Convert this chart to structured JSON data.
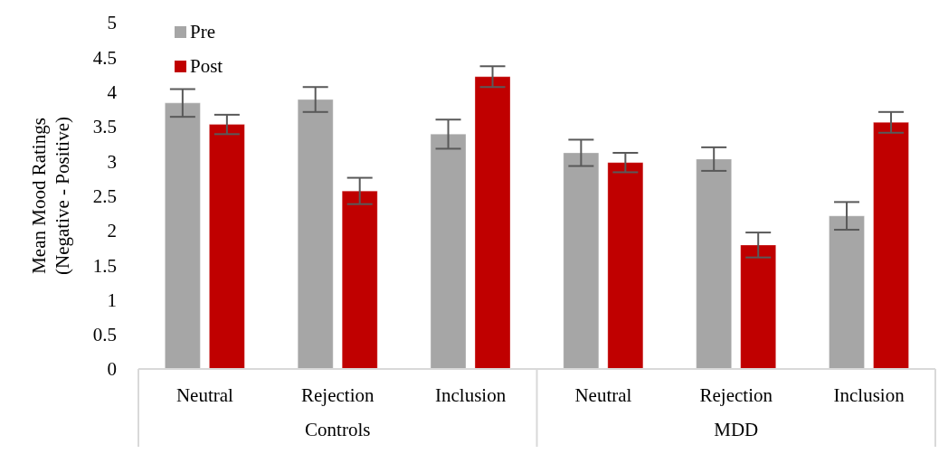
{
  "chart_data": {
    "type": "bar",
    "ylabel": "Mean Mood Ratings\n(Negative - Positive)",
    "categories": [
      "Neutral",
      "Rejection",
      "Inclusion",
      "Neutral",
      "Rejection",
      "Inclusion"
    ],
    "series": [
      {
        "name": "Pre",
        "color": "#a6a6a6",
        "values": [
          3.84,
          3.89,
          3.39,
          3.12,
          3.03,
          2.21
        ],
        "errors": [
          0.2,
          0.18,
          0.21,
          0.19,
          0.17,
          0.2
        ]
      },
      {
        "name": "Post",
        "color": "#c00000",
        "values": [
          3.53,
          2.57,
          4.22,
          2.98,
          1.79,
          3.56
        ],
        "errors": [
          0.14,
          0.19,
          0.15,
          0.14,
          0.18,
          0.15
        ]
      }
    ],
    "annotations": [
      "Controls",
      "MDD"
    ],
    "ylim": [
      0,
      5
    ],
    "yticks": [
      0,
      0.5,
      1,
      1.5,
      2,
      2.5,
      3,
      3.5,
      4,
      4.5,
      5
    ],
    "grid": false,
    "legend": "top left"
  }
}
